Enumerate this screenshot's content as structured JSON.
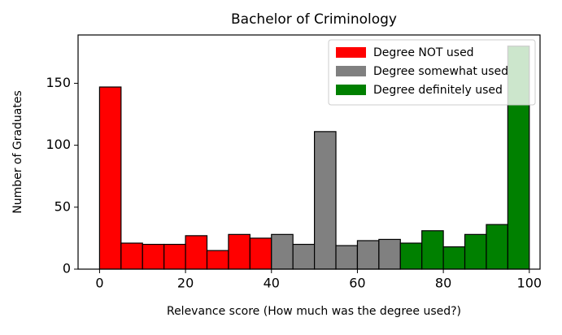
{
  "chart_data": {
    "type": "histogram",
    "title": "Bachelor of Criminology",
    "xlabel": "Relevance score (How much was the degree used?)",
    "ylabel": "Number of Graduates",
    "series": [
      {
        "name": "Degree NOT used",
        "color": "#ff0000",
        "bins": [
          0,
          5,
          10,
          15,
          20,
          25,
          30,
          35,
          40
        ],
        "values": [
          147,
          21,
          20,
          20,
          27,
          15,
          28,
          25
        ]
      },
      {
        "name": "Degree somewhat used",
        "color": "#808080",
        "bins": [
          40,
          45,
          50,
          55,
          60,
          65,
          70
        ],
        "values": [
          28,
          20,
          111,
          19,
          23,
          24
        ]
      },
      {
        "name": "Degree definitely used",
        "color": "#008000",
        "bins": [
          70,
          75,
          80,
          85,
          90,
          95,
          100
        ],
        "values": [
          21,
          31,
          18,
          28,
          36,
          180
        ]
      }
    ],
    "xlim": [
      -5,
      102.5
    ],
    "ylim": [
      0,
      189
    ],
    "xticks": [
      0,
      20,
      40,
      60,
      80,
      100
    ],
    "yticks": [
      0,
      50,
      100,
      150
    ],
    "legend": "upper right"
  }
}
